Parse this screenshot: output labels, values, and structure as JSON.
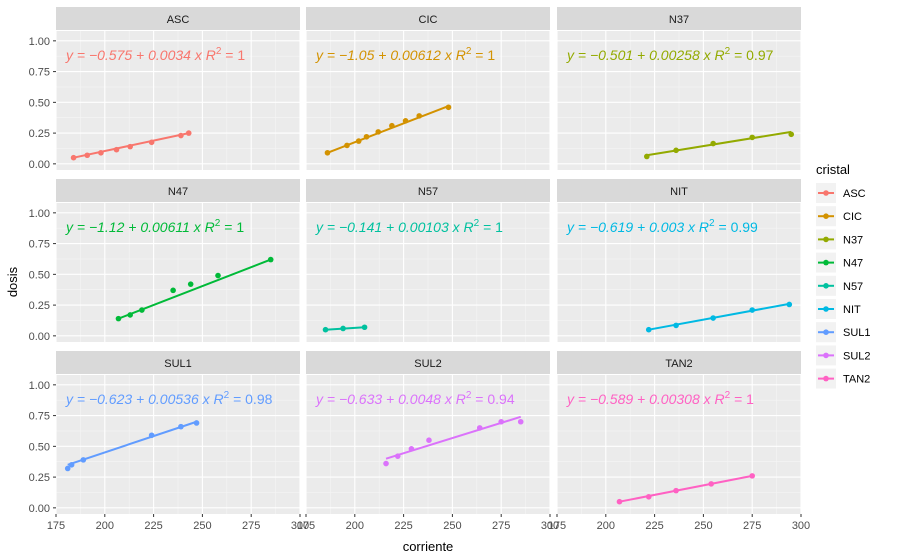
{
  "chart_data": {
    "type": "scatter",
    "subtype": "faceted scatter with linear fit lines",
    "xlabel": "corriente",
    "ylabel": "dosis",
    "xlim": [
      175,
      300
    ],
    "ylim": [
      -0.05,
      1.08
    ],
    "x_ticks": [
      175,
      200,
      225,
      250,
      275,
      300
    ],
    "y_ticks": [
      0.0,
      0.25,
      0.5,
      0.75,
      1.0
    ],
    "x_tick_labels": [
      "175",
      "200",
      "225",
      "250",
      "275",
      "300"
    ],
    "y_tick_labels": [
      "0.00",
      "0.25",
      "0.50",
      "0.75",
      "1.00"
    ],
    "legend": {
      "title": "cristal",
      "position": "right"
    },
    "grid": true,
    "panels": [
      {
        "name": "ASC",
        "color": "#F8766D",
        "equation": "y = −0.575 + 0.0034 x",
        "r2": "1",
        "points": [
          [
            184,
            0.05
          ],
          [
            191,
            0.07
          ],
          [
            198,
            0.09
          ],
          [
            206,
            0.115
          ],
          [
            213,
            0.14
          ],
          [
            224,
            0.175
          ],
          [
            239,
            0.23
          ],
          [
            243,
            0.25
          ]
        ],
        "fit": [
          [
            184,
            0.05
          ],
          [
            243,
            0.25
          ]
        ]
      },
      {
        "name": "CIC",
        "color": "#D39200",
        "equation": "y = −1.05 + 0.00612 x",
        "r2": "1",
        "points": [
          [
            186,
            0.09
          ],
          [
            196,
            0.15
          ],
          [
            202,
            0.185
          ],
          [
            206,
            0.22
          ],
          [
            212,
            0.26
          ],
          [
            219,
            0.31
          ],
          [
            226,
            0.35
          ],
          [
            233,
            0.39
          ],
          [
            248,
            0.46
          ]
        ],
        "fit": [
          [
            186,
            0.09
          ],
          [
            248,
            0.47
          ]
        ]
      },
      {
        "name": "N37",
        "color": "#93AA00",
        "equation": "y = −0.501 + 0.00258 x",
        "r2": "0.97",
        "points": [
          [
            221,
            0.06
          ],
          [
            236,
            0.11
          ],
          [
            255,
            0.165
          ],
          [
            275,
            0.215
          ],
          [
            295,
            0.24
          ]
        ],
        "fit": [
          [
            221,
            0.07
          ],
          [
            295,
            0.26
          ]
        ]
      },
      {
        "name": "N47",
        "color": "#00BA38",
        "equation": "y = −1.12 + 0.00611 x",
        "r2": "1",
        "points": [
          [
            207,
            0.14
          ],
          [
            213,
            0.17
          ],
          [
            219,
            0.21
          ],
          [
            235,
            0.37
          ],
          [
            244,
            0.42
          ],
          [
            258,
            0.49
          ],
          [
            285,
            0.62
          ]
        ],
        "fit": [
          [
            207,
            0.14
          ],
          [
            285,
            0.62
          ]
        ]
      },
      {
        "name": "N57",
        "color": "#00C19F",
        "equation": "y = −0.141 + 0.00103 x",
        "r2": "1",
        "points": [
          [
            185,
            0.05
          ],
          [
            194,
            0.06
          ],
          [
            205,
            0.07
          ]
        ],
        "fit": [
          [
            185,
            0.05
          ],
          [
            205,
            0.07
          ]
        ]
      },
      {
        "name": "NIT",
        "color": "#00B9E3",
        "equation": "y = −0.619 + 0.003 x",
        "r2": "0.99",
        "points": [
          [
            222,
            0.05
          ],
          [
            236,
            0.085
          ],
          [
            255,
            0.145
          ],
          [
            275,
            0.21
          ],
          [
            294,
            0.255
          ]
        ],
        "fit": [
          [
            222,
            0.05
          ],
          [
            294,
            0.26
          ]
        ]
      },
      {
        "name": "SUL1",
        "color": "#619CFF",
        "equation": "y = −0.623 + 0.00536 x",
        "r2": "0.98",
        "points": [
          [
            181,
            0.32
          ],
          [
            183,
            0.35
          ],
          [
            189,
            0.39
          ],
          [
            224,
            0.59
          ],
          [
            239,
            0.66
          ],
          [
            247,
            0.69
          ]
        ],
        "fit": [
          [
            181,
            0.35
          ],
          [
            247,
            0.7
          ]
        ]
      },
      {
        "name": "SUL2",
        "color": "#DB72FB",
        "equation": "y = −0.633 + 0.0048 x",
        "r2": "0.94",
        "points": [
          [
            216,
            0.36
          ],
          [
            222,
            0.42
          ],
          [
            229,
            0.48
          ],
          [
            238,
            0.55
          ],
          [
            264,
            0.65
          ],
          [
            275,
            0.7
          ],
          [
            285,
            0.7
          ]
        ],
        "fit": [
          [
            216,
            0.4
          ],
          [
            285,
            0.74
          ]
        ]
      },
      {
        "name": "TAN2",
        "color": "#FF61C3",
        "equation": "y = −0.589 + 0.00308 x",
        "r2": "1",
        "points": [
          [
            207,
            0.05
          ],
          [
            222,
            0.09
          ],
          [
            236,
            0.14
          ],
          [
            254,
            0.195
          ],
          [
            275,
            0.26
          ]
        ],
        "fit": [
          [
            207,
            0.05
          ],
          [
            275,
            0.26
          ]
        ]
      }
    ]
  }
}
